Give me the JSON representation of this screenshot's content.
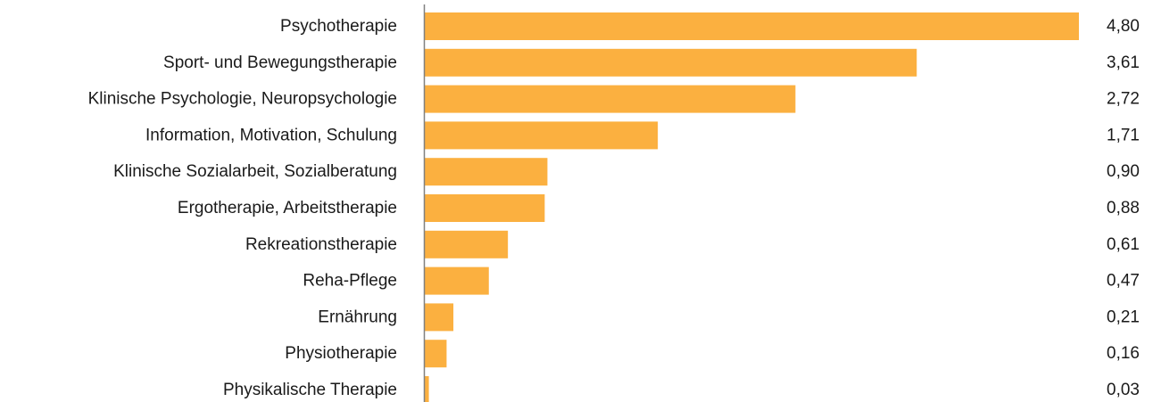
{
  "chart_data": {
    "type": "bar",
    "orientation": "horizontal",
    "title": "",
    "xlabel": "",
    "ylabel": "",
    "categories": [
      "Psychotherapie",
      "Sport- und Bewegungstherapie",
      "Klinische Psychologie, Neuropsychologie",
      "Information, Motivation, Schulung",
      "Klinische Sozialarbeit, Sozialberatung",
      "Ergotherapie, Arbeitstherapie",
      "Rekreationstherapie",
      "Reha-Pflege",
      "Ernährung",
      "Physiotherapie",
      "Physikalische Therapie"
    ],
    "values": [
      4.8,
      3.61,
      2.72,
      1.71,
      0.9,
      0.88,
      0.61,
      0.47,
      0.21,
      0.16,
      0.03
    ],
    "value_labels": [
      "4,80",
      "3,61",
      "2,72",
      "1,71",
      "0,90",
      "0,88",
      "0,61",
      "0,47",
      "0,21",
      "0,16",
      "0,03"
    ],
    "xlim": [
      0,
      4.8
    ],
    "grid": false,
    "legend": "none",
    "bar_color": "#FBB040",
    "axis_color": "#808080"
  }
}
